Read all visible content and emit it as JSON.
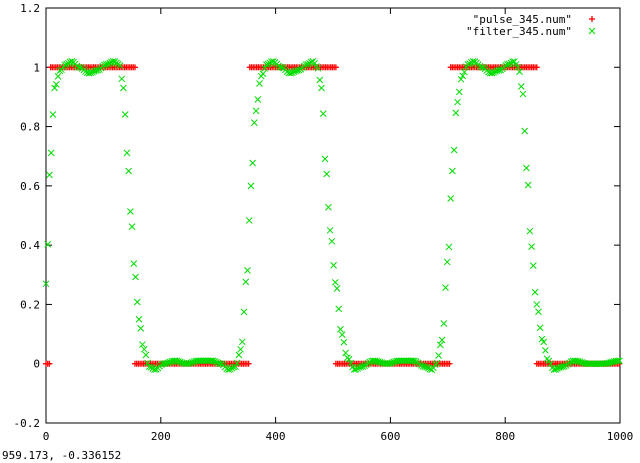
{
  "status_readout": "959.173, -0.336152",
  "colors": {
    "pulse": "#ff0000",
    "filter": "#00dd00",
    "axis": "#000000",
    "background": "#ffffff"
  },
  "chart_data": {
    "type": "scatter",
    "title": "",
    "xlabel": "",
    "ylabel": "",
    "xlim": [
      0,
      1000
    ],
    "ylim": [
      -0.2,
      1.2
    ],
    "xticks": [
      "0",
      "200",
      "400",
      "600",
      "800",
      "1000"
    ],
    "yticks": [
      "-0.2",
      "0",
      "0.2",
      "0.4",
      "0.6",
      "0.8",
      "1",
      "1.2"
    ],
    "grid": false,
    "legend_position": "top-right",
    "series": [
      {
        "name": "\"pulse_345.num\"",
        "marker": "+",
        "color": "#ff0000",
        "segments": [
          {
            "x_start": 0,
            "x_end": 8,
            "y": 0
          },
          {
            "x_start": 8,
            "x_end": 155,
            "y": 1
          },
          {
            "x_start": 155,
            "x_end": 355,
            "y": 0
          },
          {
            "x_start": 355,
            "x_end": 505,
            "y": 1
          },
          {
            "x_start": 505,
            "x_end": 705,
            "y": 0
          },
          {
            "x_start": 705,
            "x_end": 855,
            "y": 1
          },
          {
            "x_start": 855,
            "x_end": 1000,
            "y": 0
          }
        ],
        "x_step": 3
      },
      {
        "name": "\"filter_345.num\"",
        "marker": "x",
        "color": "#00dd00",
        "x_step": 3,
        "points": [
          [
            0,
            0.27
          ],
          [
            8,
            0.7
          ],
          [
            15,
            0.93
          ],
          [
            25,
            0.99
          ],
          [
            35,
            1.01
          ],
          [
            45,
            1.02
          ],
          [
            58,
            1.0
          ],
          [
            75,
            0.98
          ],
          [
            90,
            0.99
          ],
          [
            105,
            1.01
          ],
          [
            118,
            1.02
          ],
          [
            128,
            1.01
          ],
          [
            135,
            0.93
          ],
          [
            142,
            0.7
          ],
          [
            148,
            0.5
          ],
          [
            155,
            0.3
          ],
          [
            162,
            0.15
          ],
          [
            170,
            0.05
          ],
          [
            180,
            -0.01
          ],
          [
            190,
            -0.02
          ],
          [
            205,
            0.0
          ],
          [
            225,
            0.01
          ],
          [
            245,
            0.0
          ],
          [
            265,
            0.01
          ],
          [
            290,
            0.01
          ],
          [
            305,
            0.0
          ],
          [
            318,
            -0.02
          ],
          [
            330,
            -0.01
          ],
          [
            340,
            0.05
          ],
          [
            350,
            0.3
          ],
          [
            357,
            0.6
          ],
          [
            365,
            0.85
          ],
          [
            375,
            0.97
          ],
          [
            385,
            1.01
          ],
          [
            395,
            1.02
          ],
          [
            410,
            1.0
          ],
          [
            425,
            0.98
          ],
          [
            440,
            0.99
          ],
          [
            455,
            1.01
          ],
          [
            465,
            1.02
          ],
          [
            473,
            1.0
          ],
          [
            480,
            0.93
          ],
          [
            488,
            0.65
          ],
          [
            495,
            0.45
          ],
          [
            505,
            0.27
          ],
          [
            515,
            0.1
          ],
          [
            525,
            0.02
          ],
          [
            538,
            -0.02
          ],
          [
            550,
            -0.01
          ],
          [
            570,
            0.01
          ],
          [
            595,
            0.0
          ],
          [
            615,
            0.01
          ],
          [
            640,
            0.01
          ],
          [
            660,
            -0.01
          ],
          [
            672,
            -0.02
          ],
          [
            680,
            0.0
          ],
          [
            690,
            0.08
          ],
          [
            700,
            0.35
          ],
          [
            708,
            0.65
          ],
          [
            716,
            0.88
          ],
          [
            725,
            0.97
          ],
          [
            735,
            1.01
          ],
          [
            745,
            1.02
          ],
          [
            760,
            1.0
          ],
          [
            775,
            0.98
          ],
          [
            790,
            0.99
          ],
          [
            805,
            1.01
          ],
          [
            815,
            1.02
          ],
          [
            823,
            1.0
          ],
          [
            830,
            0.92
          ],
          [
            838,
            0.65
          ],
          [
            845,
            0.4
          ],
          [
            855,
            0.2
          ],
          [
            865,
            0.08
          ],
          [
            875,
            0.01
          ],
          [
            885,
            -0.02
          ],
          [
            900,
            -0.01
          ],
          [
            920,
            0.01
          ],
          [
            945,
            0.0
          ],
          [
            970,
            0.0
          ],
          [
            1000,
            0.01
          ]
        ]
      }
    ]
  }
}
